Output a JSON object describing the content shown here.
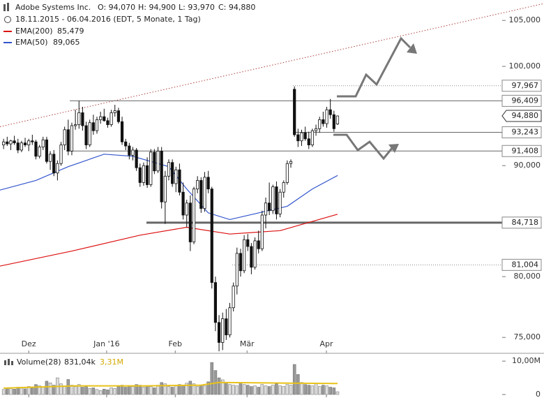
{
  "chart_data": {
    "type": "candlestick",
    "header": {
      "name": "Adobe Systems Inc.",
      "ohlc": [
        "O: 94,070",
        "H: 94,900",
        "L: 93,970",
        "C: 94,880"
      ],
      "range": "18.11.2015 - 06.04.2016 (EDT, 5 Monate, 1 Tag)"
    },
    "log_scale": true,
    "ylim": [
      73.8,
      107.3
    ],
    "xlim": [
      -1,
      150.5
    ],
    "yticks": [
      {
        "value": 75,
        "label": "75,000"
      },
      {
        "value": 80,
        "label": "80,000"
      },
      {
        "value": 90,
        "label": "90,000"
      },
      {
        "value": 100,
        "label": "100,000"
      },
      {
        "value": 105,
        "label": "105,000"
      }
    ],
    "xticks": [
      {
        "value": 7,
        "label": "Dez"
      },
      {
        "value": 28.7,
        "label": "Jan '16"
      },
      {
        "value": 47.8,
        "label": "Feb"
      },
      {
        "value": 67.8,
        "label": "Mär"
      },
      {
        "value": 89.9,
        "label": "Apr"
      }
    ],
    "candles": [
      [
        92.0,
        92.6,
        91.6,
        92.3
      ],
      [
        92.3,
        92.8,
        91.9,
        92.1
      ],
      [
        92.1,
        92.5,
        91.5,
        92.4
      ],
      [
        92.4,
        92.9,
        92.0,
        92.2
      ],
      [
        92.2,
        92.6,
        91.2,
        91.5
      ],
      [
        91.5,
        92.4,
        91.3,
        92.2
      ],
      [
        92.2,
        92.7,
        91.8,
        92.0
      ],
      [
        92.0,
        92.6,
        91.4,
        92.4
      ],
      [
        92.4,
        93.0,
        92.0,
        92.3
      ],
      [
        92.3,
        92.5,
        90.6,
        90.9
      ],
      [
        90.9,
        92.0,
        90.7,
        91.8
      ],
      [
        91.8,
        92.8,
        91.5,
        92.5
      ],
      [
        92.5,
        92.8,
        90.2,
        90.4
      ],
      [
        90.4,
        91.4,
        89.6,
        91.1
      ],
      [
        91.1,
        91.5,
        89.0,
        89.3
      ],
      [
        89.3,
        90.5,
        88.6,
        90.2
      ],
      [
        90.2,
        92.3,
        90.0,
        92.0
      ],
      [
        92.0,
        93.8,
        91.5,
        93.5
      ],
      [
        93.5,
        94.5,
        91.0,
        91.4
      ],
      [
        91.4,
        94.2,
        91.0,
        93.9
      ],
      [
        93.9,
        95.5,
        93.5,
        94.0
      ],
      [
        94.0,
        96.4,
        93.6,
        95.2
      ],
      [
        95.2,
        95.8,
        93.4,
        93.9
      ],
      [
        93.9,
        94.3,
        91.6,
        92.0
      ],
      [
        92.0,
        94.5,
        91.8,
        94.2
      ],
      [
        94.2,
        95.0,
        93.0,
        93.4
      ],
      [
        93.4,
        94.8,
        93.1,
        94.5
      ],
      [
        94.5,
        95.3,
        94.1,
        94.8
      ],
      [
        94.8,
        95.6,
        94.3,
        94.4
      ],
      [
        94.4,
        94.7,
        93.7,
        94.0
      ],
      [
        94.0,
        95.5,
        93.8,
        95.2
      ],
      [
        95.2,
        96.0,
        94.8,
        95.4
      ],
      [
        95.4,
        95.7,
        94.1,
        94.3
      ],
      [
        94.3,
        94.8,
        92.0,
        92.3
      ],
      [
        92.3,
        92.6,
        91.5,
        91.9
      ],
      [
        91.9,
        92.2,
        90.6,
        91.0
      ],
      [
        91.0,
        91.8,
        90.5,
        91.5
      ],
      [
        91.5,
        91.7,
        89.5,
        89.8
      ],
      [
        89.8,
        90.2,
        88.0,
        88.4
      ],
      [
        88.4,
        90.3,
        88.1,
        90.0
      ],
      [
        90.0,
        90.8,
        87.9,
        88.2
      ],
      [
        88.2,
        91.6,
        88.0,
        91.3
      ],
      [
        91.3,
        91.6,
        89.2,
        89.5
      ],
      [
        89.5,
        91.8,
        89.3,
        91.4
      ],
      [
        91.4,
        91.8,
        86.0,
        86.6
      ],
      [
        86.6,
        89.5,
        84.6,
        89.0
      ],
      [
        89.0,
        90.6,
        88.6,
        90.3
      ],
      [
        90.3,
        90.6,
        88.0,
        88.3
      ],
      [
        88.3,
        89.9,
        87.5,
        89.6
      ],
      [
        89.6,
        90.2,
        87.2,
        87.5
      ],
      [
        87.5,
        88.4,
        85.0,
        85.4
      ],
      [
        85.4,
        86.8,
        84.3,
        86.5
      ],
      [
        86.5,
        87.2,
        82.2,
        83.0
      ],
      [
        83.0,
        88.0,
        82.8,
        87.8
      ],
      [
        87.8,
        89.0,
        87.4,
        88.6
      ],
      [
        88.6,
        88.9,
        85.6,
        86.0
      ],
      [
        86.0,
        89.4,
        85.7,
        88.9
      ],
      [
        88.9,
        89.5,
        87.4,
        87.8
      ],
      [
        87.8,
        88.0,
        79.0,
        79.5
      ],
      [
        79.5,
        80.0,
        75.5,
        76.2
      ],
      [
        76.2,
        76.8,
        73.9,
        74.6
      ],
      [
        74.6,
        77.0,
        74.0,
        76.5
      ],
      [
        76.5,
        77.3,
        74.8,
        75.2
      ],
      [
        75.2,
        77.8,
        75.0,
        77.4
      ],
      [
        77.4,
        79.5,
        77.1,
        79.2
      ],
      [
        79.2,
        82.5,
        78.5,
        82.0
      ],
      [
        82.0,
        82.4,
        80.0,
        80.5
      ],
      [
        80.5,
        83.6,
        80.3,
        83.2
      ],
      [
        83.2,
        83.7,
        82.2,
        82.6
      ],
      [
        82.6,
        82.9,
        80.2,
        80.8
      ],
      [
        80.8,
        83.4,
        80.6,
        83.1
      ],
      [
        83.1,
        84.0,
        82.0,
        82.4
      ],
      [
        82.4,
        85.8,
        82.2,
        85.4
      ],
      [
        85.4,
        87.0,
        84.2,
        86.5
      ],
      [
        86.5,
        88.4,
        85.4,
        85.8
      ],
      [
        85.8,
        88.2,
        85.5,
        88.0
      ],
      [
        88.0,
        88.5,
        85.0,
        85.5
      ],
      [
        85.5,
        87.8,
        85.2,
        87.5
      ],
      [
        87.5,
        88.6,
        87.0,
        88.4
      ],
      [
        88.4,
        90.5,
        88.2,
        90.2
      ],
      [
        90.2,
        90.6,
        89.8,
        90.4
      ],
      [
        97.6,
        97.9,
        92.8,
        93.0
      ],
      [
        93.0,
        93.6,
        91.8,
        92.4
      ],
      [
        92.4,
        93.5,
        91.9,
        93.2
      ],
      [
        93.2,
        93.8,
        92.4,
        92.6
      ],
      [
        92.6,
        93.3,
        91.6,
        92.0
      ],
      [
        92.0,
        93.6,
        91.8,
        93.4
      ],
      [
        93.4,
        94.0,
        92.9,
        93.6
      ],
      [
        93.6,
        94.8,
        93.2,
        94.5
      ],
      [
        94.5,
        95.3,
        93.8,
        94.1
      ],
      [
        94.1,
        95.8,
        93.7,
        95.5
      ],
      [
        95.5,
        96.6,
        94.6,
        95.0
      ],
      [
        95.0,
        95.4,
        93.3,
        93.6
      ],
      [
        94.07,
        94.9,
        93.97,
        94.88
      ]
    ],
    "series": [
      {
        "name": "EMA(200)",
        "value_label": "85,479",
        "color": "#dd1111",
        "x": [
          -1,
          19,
          38,
          51,
          63,
          77,
          93
        ],
        "values": [
          80.9,
          82.2,
          83.6,
          84.3,
          83.7,
          84.0,
          85.479
        ]
      },
      {
        "name": "EMA(50)",
        "value_label": "89,065",
        "color": "#3355cc",
        "x": [
          -1,
          9,
          18,
          28,
          36,
          46,
          51,
          57,
          63,
          71,
          79,
          86,
          93
        ],
        "values": [
          87.7,
          88.6,
          89.9,
          91.1,
          90.9,
          89.9,
          87.8,
          85.6,
          85.0,
          85.6,
          86.2,
          87.8,
          89.065
        ]
      }
    ],
    "trendline": {
      "color": "#b04040",
      "x": [
        -1,
        150.5
      ],
      "values": [
        93.8,
        106.9
      ]
    },
    "levels": [
      {
        "value": 97.967,
        "label": "97,967",
        "style": "dotted"
      },
      {
        "value": 96.409,
        "label": "96,409",
        "style": "solid"
      },
      {
        "value": 94.88,
        "label": "94,880",
        "style": "current"
      },
      {
        "value": 93.243,
        "label": "93,243",
        "style": "solid"
      },
      {
        "value": 91.408,
        "label": "91,408",
        "style": "solid"
      },
      {
        "value": 84.718,
        "label": "84,718",
        "style": "thick"
      },
      {
        "value": 81.004,
        "label": "81,004",
        "style": "dotted"
      }
    ],
    "volume": {
      "name": "Volume(28)",
      "value_label": "831,04k",
      "avg_label": "3,31M",
      "avg_color": "#e8c21a",
      "ylim": [
        0,
        11.5
      ],
      "yticks": [
        0,
        {
          "value": 10,
          "label": "10,00M"
        }
      ],
      "values": [
        1.5,
        2.0,
        1.8,
        1.6,
        2.2,
        1.9,
        1.7,
        2.4,
        2.0,
        3.0,
        2.6,
        2.2,
        4.0,
        3.5,
        2.8,
        5.0,
        3.2,
        2.5,
        4.5,
        2.8,
        2.4,
        3.0,
        2.2,
        2.6,
        1.8,
        2.0,
        1.5,
        1.2,
        1.6,
        1.4,
        2.0,
        1.8,
        2.4,
        2.8,
        2.2,
        2.6,
        2.4,
        3.0,
        2.8,
        2.2,
        2.6,
        2.4,
        2.0,
        2.8,
        3.6,
        3.2,
        2.4,
        2.2,
        2.6,
        3.0,
        2.8,
        3.4,
        4.0,
        3.2,
        2.4,
        2.8,
        2.6,
        3.8,
        9.6,
        7.2,
        5.0,
        4.4,
        3.6,
        3.0,
        2.8,
        2.6,
        3.4,
        3.0,
        2.8,
        2.4,
        2.6,
        2.2,
        3.0,
        2.6,
        2.4,
        2.8,
        3.2,
        2.6,
        2.4,
        3.0,
        2.8,
        9.0,
        6.0,
        3.6,
        3.0,
        2.8,
        2.6,
        3.2,
        2.4,
        2.8,
        2.6,
        2.2,
        2.0,
        0.83104
      ],
      "avg_x": [
        0,
        20,
        40,
        55,
        60,
        80,
        93
      ],
      "avg_values": [
        1.9,
        2.6,
        2.6,
        2.8,
        3.6,
        3.4,
        3.31
      ]
    }
  }
}
